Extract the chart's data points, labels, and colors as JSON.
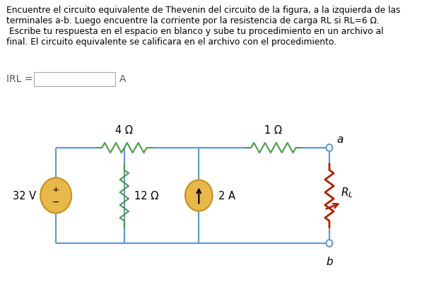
{
  "title_text": "Encuentre el circuito equivalente de Thevenin del circuito de la figura, a la izquierda de las\nterminales a-b. Luego encuentre la corriente por la resistencia de carga RL si RL=6 Ω.\n Escribe tu respuesta en el espacio en blanco y sube tu procedimiento en un archivo al\nfinal. El circuito equivalente se calificara en el archivo con el procedimiento.",
  "irl_label": "IRL =",
  "irl_unit": "A",
  "bg_color": "#ffffff",
  "text_color": "#000000",
  "resistor_color": "#4a9a4a",
  "wire_color": "#6699cc",
  "voltage_source_color": "#e8b84b",
  "current_source_color": "#e8b84b",
  "source_edge_color": "#c49020",
  "resistor_load_color": "#aa2200",
  "node_color": "#6699cc",
  "label_4ohm": "4 Ω",
  "label_12ohm": "12 Ω",
  "label_1ohm": "1 Ω",
  "label_2A": "2 A",
  "label_32V": "32 V",
  "label_a": "a",
  "label_b": "b",
  "title_fontsize": 8.8,
  "circuit_label_fontsize": 10.5
}
